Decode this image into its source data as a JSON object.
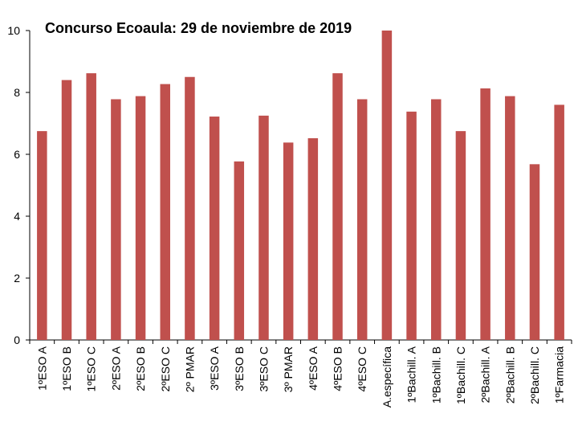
{
  "chart_data": {
    "type": "bar",
    "title": "Concurso Ecoaula: 29 de noviembre de 2019",
    "xlabel": "",
    "ylabel": "",
    "ylim": [
      0,
      10
    ],
    "yticks": [
      0,
      2,
      4,
      6,
      8,
      10
    ],
    "grid": false,
    "legend": "none",
    "bar_color": "#c0504d",
    "categories": [
      "1ºESO A",
      "1ºESO B",
      "1ºESO C",
      "2ºESO A",
      "2ºESO B",
      "2ºESO C",
      "2º PMAR",
      "3ºESO A",
      "3ºESO B",
      "3ºESO C",
      "3º PMAR",
      "4ºESO A",
      "4ºESO B",
      "4ºESO C",
      "A.específica",
      "1ºBachill. A",
      "1ºBachill. B",
      "1ºBachill. C",
      "2ºBachill. A",
      "2ºBachill. B",
      "2ºBachill. C",
      "1ºFarmacia"
    ],
    "values": [
      6.75,
      8.4,
      8.62,
      7.78,
      7.88,
      8.27,
      8.5,
      7.22,
      5.77,
      7.25,
      6.38,
      6.52,
      8.62,
      7.78,
      10.0,
      7.38,
      7.78,
      6.75,
      8.13,
      7.88,
      5.68,
      7.6
    ]
  }
}
